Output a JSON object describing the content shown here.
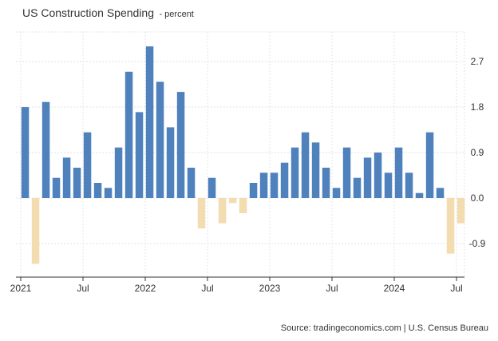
{
  "chart_data": {
    "type": "bar",
    "title": "US Construction Spending",
    "subtitle": "- percent",
    "source": "Source: tradingeconomics.com | U.S. Census Bureau",
    "xlabel": "",
    "ylabel": "",
    "ylim": [
      -1.2,
      3.0
    ],
    "y_ticks": [
      2.7,
      1.8,
      0.9,
      0.0,
      -0.9
    ],
    "y_tick_labels": [
      "2.7",
      "1.8",
      "0.9",
      "0.0",
      "-0.9"
    ],
    "x_tick_labels": [
      "2021",
      "Jul",
      "2022",
      "Jul",
      "2023",
      "Jul",
      "2024",
      "Jul"
    ],
    "x_tick_index": [
      0,
      6,
      12,
      18,
      24,
      30,
      36,
      42
    ],
    "y_axis_position": "right",
    "grid": true,
    "colors": {
      "positive": "#4f81bd",
      "negative": "#f2dcb0"
    },
    "categories": [
      "2021-01",
      "2021-02",
      "2021-03",
      "2021-04",
      "2021-05",
      "2021-06",
      "2021-07",
      "2021-08",
      "2021-09",
      "2021-10",
      "2021-11",
      "2021-12",
      "2022-01",
      "2022-02",
      "2022-03",
      "2022-04",
      "2022-05",
      "2022-06",
      "2022-07",
      "2022-08",
      "2022-09",
      "2022-10",
      "2022-11",
      "2022-12",
      "2023-01",
      "2023-02",
      "2023-03",
      "2023-04",
      "2023-05",
      "2023-06",
      "2023-07",
      "2023-08",
      "2023-09",
      "2023-10",
      "2023-11",
      "2023-12",
      "2024-01",
      "2024-02",
      "2024-03",
      "2024-04",
      "2024-05",
      "2024-06",
      "2024-07"
    ],
    "values": [
      1.8,
      -1.3,
      1.9,
      0.4,
      0.8,
      0.6,
      1.3,
      0.3,
      0.2,
      1.0,
      2.5,
      1.7,
      3.0,
      2.3,
      1.4,
      2.1,
      0.6,
      -0.6,
      0.4,
      -0.5,
      -0.1,
      -0.3,
      0.3,
      0.5,
      0.5,
      0.7,
      1.0,
      1.3,
      1.1,
      0.6,
      0.2,
      1.0,
      0.4,
      0.8,
      0.9,
      0.5,
      1.0,
      0.5,
      0.1,
      1.3,
      0.2,
      -1.1,
      -0.5
    ]
  }
}
